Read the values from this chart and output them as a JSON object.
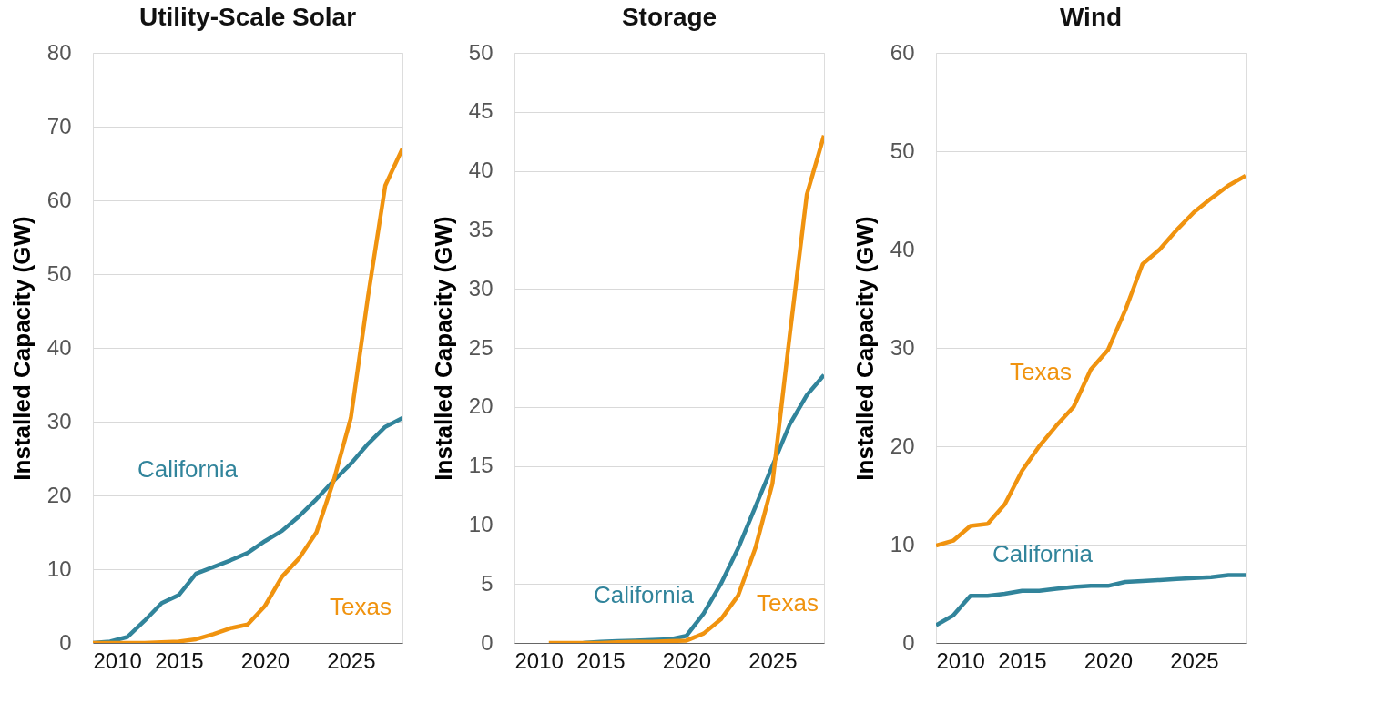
{
  "chart_data": [
    {
      "type": "line",
      "title": "Utility-Scale Solar",
      "ylabel": "Installed Capacity (GW)",
      "x": [
        2010,
        2011,
        2012,
        2013,
        2014,
        2015,
        2016,
        2017,
        2018,
        2019,
        2020,
        2021,
        2022,
        2023,
        2024,
        2025,
        2026,
        2027,
        2028
      ],
      "xlim": [
        2010,
        2028
      ],
      "xticks": [
        2010,
        2015,
        2020,
        2025
      ],
      "ylim": [
        0,
        80
      ],
      "yticks": [
        0,
        10,
        20,
        30,
        40,
        50,
        60,
        70,
        80
      ],
      "grid": "y",
      "series": [
        {
          "name": "California",
          "color": "#31849b",
          "values": [
            0,
            0.2,
            0.8,
            3,
            5.4,
            6.5,
            9.4,
            10.3,
            11.2,
            12.2,
            13.8,
            15.2,
            17.2,
            19.5,
            22,
            24.3,
            27,
            29.3,
            30.5
          ]
        },
        {
          "name": "Texas",
          "color": "#f0930f",
          "values": [
            0,
            0,
            0,
            0,
            0.1,
            0.2,
            0.5,
            1.2,
            2,
            2.5,
            5,
            9,
            11.5,
            15,
            22,
            30.5,
            47,
            62,
            67
          ]
        }
      ],
      "line_style": "solid"
    },
    {
      "type": "line",
      "title": "Storage",
      "ylabel": "Installed Capacity (GW)",
      "xlim": [
        2010,
        2028
      ],
      "xticks": [
        2010,
        2015,
        2020,
        2025
      ],
      "ylim": [
        0,
        50
      ],
      "yticks": [
        0,
        5,
        10,
        15,
        20,
        25,
        30,
        35,
        40,
        45,
        50
      ],
      "grid": "y",
      "series": [
        {
          "name": "California",
          "color": "#31849b",
          "x": [
            2014,
            2015,
            2016,
            2017,
            2018,
            2019,
            2020,
            2021,
            2022,
            2023,
            2024,
            2025,
            2026,
            2027,
            2028
          ],
          "values": [
            0,
            0.1,
            0.15,
            0.2,
            0.25,
            0.3,
            0.6,
            2.5,
            5,
            8,
            11.5,
            15,
            18.5,
            21,
            22.7
          ]
        },
        {
          "name": "Texas",
          "color": "#f0930f",
          "x": [
            2012,
            2013,
            2014,
            2015,
            2016,
            2017,
            2018,
            2019,
            2020,
            2021,
            2022,
            2023,
            2024,
            2025,
            2026,
            2027,
            2028
          ],
          "values": [
            0,
            0,
            0,
            0,
            0.05,
            0.1,
            0.1,
            0.15,
            0.2,
            0.8,
            2,
            4,
            8,
            13.5,
            26,
            38,
            43
          ]
        }
      ],
      "line_style": "solid"
    },
    {
      "type": "line",
      "title": "Wind",
      "ylabel": "Installed Capacity (GW)",
      "x": [
        2010,
        2011,
        2012,
        2013,
        2014,
        2015,
        2016,
        2017,
        2018,
        2019,
        2020,
        2021,
        2022,
        2023,
        2024,
        2025,
        2026,
        2027,
        2028
      ],
      "xlim": [
        2010,
        2028
      ],
      "xticks": [
        2010,
        2015,
        2020,
        2025
      ],
      "ylim": [
        0,
        60
      ],
      "yticks": [
        0,
        10,
        20,
        30,
        40,
        50,
        60
      ],
      "grid": "y",
      "series": [
        {
          "name": "California",
          "color": "#31849b",
          "values": [
            1.8,
            2.8,
            4.8,
            4.8,
            5,
            5.3,
            5.3,
            5.5,
            5.7,
            5.8,
            5.8,
            6.2,
            6.3,
            6.4,
            6.5,
            6.6,
            6.7,
            6.9,
            6.9
          ]
        },
        {
          "name": "Texas",
          "color": "#f0930f",
          "values": [
            9.9,
            10.4,
            11.9,
            12.1,
            14.1,
            17.5,
            20,
            22.1,
            24,
            27.8,
            29.8,
            33.8,
            38.5,
            40,
            42,
            43.8,
            45.2,
            46.5,
            47.5
          ]
        }
      ],
      "line_style": "solid"
    }
  ]
}
